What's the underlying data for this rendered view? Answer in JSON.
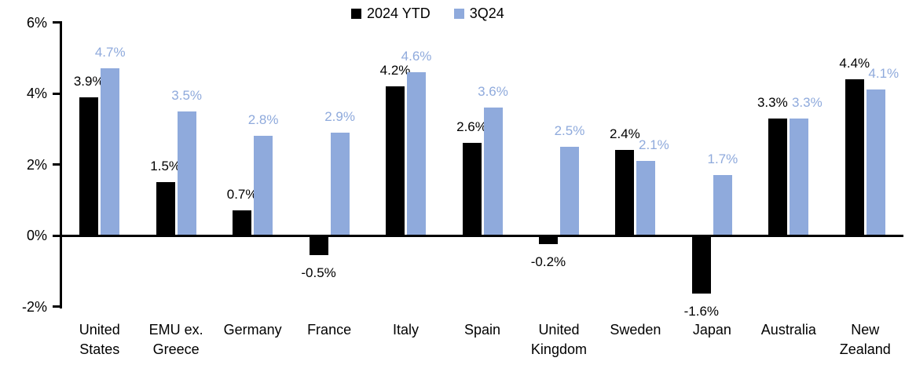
{
  "chart_data": {
    "type": "bar",
    "categories": [
      "United States",
      "EMU ex. Greece",
      "Germany",
      "France",
      "Italy",
      "Spain",
      "United Kingdom",
      "Sweden",
      "Japan",
      "Australia",
      "New Zealand"
    ],
    "series": [
      {
        "name": "2024 YTD",
        "color": "#000000",
        "values": [
          3.9,
          1.5,
          0.7,
          -0.5,
          4.2,
          2.6,
          -0.2,
          2.4,
          -1.6,
          3.3,
          4.4
        ],
        "labels": [
          "3.9%",
          "1.5%",
          "0.7%",
          "-0.5%",
          "4.2%",
          "2.6%",
          "-0.2%",
          "2.4%",
          "-1.6%",
          "3.3%",
          "4.4%"
        ]
      },
      {
        "name": "3Q24",
        "color": "#8FAADC",
        "values": [
          4.7,
          3.5,
          2.8,
          2.9,
          4.6,
          3.6,
          2.5,
          2.1,
          1.7,
          3.3,
          4.1
        ],
        "labels": [
          "4.7%",
          "3.5%",
          "2.8%",
          "2.9%",
          "4.6%",
          "3.6%",
          "2.5%",
          "2.1%",
          "1.7%",
          "3.3%",
          "4.1%"
        ]
      }
    ],
    "y_axis": {
      "min": -2,
      "max": 6,
      "tick_values": [
        6,
        4,
        2,
        0,
        -2
      ],
      "tick_labels": [
        "6%",
        "4%",
        "2%",
        "0%",
        "-2%"
      ]
    },
    "legend": {
      "position": "top-center"
    },
    "grid": "off"
  }
}
